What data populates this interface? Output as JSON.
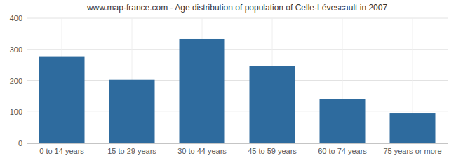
{
  "chart_data": {
    "type": "bar",
    "title": "www.map-france.com - Age distribution of population of Celle-Lévescault in 2007",
    "categories": [
      "0 to 14 years",
      "15 to 29 years",
      "30 to 44 years",
      "45 to 59 years",
      "60 to 74 years",
      "75 years or more"
    ],
    "values": [
      278,
      204,
      333,
      246,
      141,
      96
    ],
    "color": "#2e6b9e",
    "ylim": [
      0,
      400
    ],
    "yticks": [
      0,
      100,
      200,
      300,
      400
    ],
    "grid": true
  }
}
